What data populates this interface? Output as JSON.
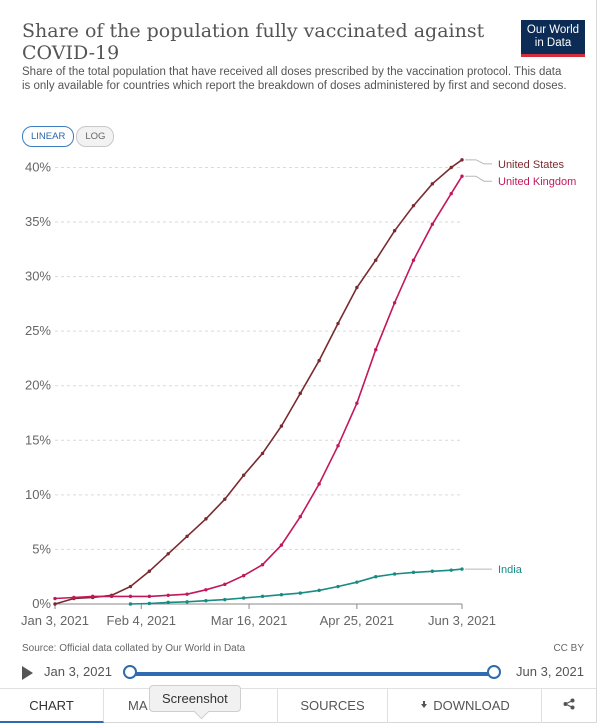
{
  "header": {
    "title": "Share of the population fully vaccinated against COVID-19",
    "subtitle": "Share of the total population that have received all doses prescribed by the vaccination protocol. This data is only available for countries which report the breakdown of doses administered by first and second doses.",
    "logo_line1": "Our World",
    "logo_line2": "in Data",
    "logo_color": "#0c2c55",
    "logo_accent": "#d42e3b"
  },
  "scale_toggle": {
    "linear": "LINEAR",
    "log": "LOG",
    "selected": "LINEAR"
  },
  "chart_data": {
    "type": "line",
    "title": "Share of the population fully vaccinated against COVID-19",
    "xlabel": "",
    "ylabel": "",
    "x_tick_labels": [
      "Jan 3, 2021",
      "Feb 4, 2021",
      "Mar 16, 2021",
      "Apr 25, 2021",
      "Jun 3, 2021"
    ],
    "x_tick_days": [
      0,
      32,
      72,
      112,
      151
    ],
    "y_ticks": [
      0,
      5,
      10,
      15,
      20,
      25,
      30,
      35,
      40
    ],
    "y_tick_labels": [
      "0%",
      "5%",
      "10%",
      "15%",
      "20%",
      "25%",
      "30%",
      "35%",
      "40%"
    ],
    "ylim": [
      0,
      40.5
    ],
    "grid": "horizontal dashed",
    "legend": "line labels at right end",
    "series": [
      {
        "name": "United States",
        "color": "#7a2a2e",
        "x": [
          "Jan 3, 2021",
          "Jan 10, 2021",
          "Jan 17, 2021",
          "Jan 24, 2021",
          "Jan 31, 2021",
          "Feb 7, 2021",
          "Feb 14, 2021",
          "Feb 21, 2021",
          "Feb 28, 2021",
          "Mar 7, 2021",
          "Mar 14, 2021",
          "Mar 21, 2021",
          "Mar 28, 2021",
          "Apr 4, 2021",
          "Apr 11, 2021",
          "Apr 18, 2021",
          "Apr 25, 2021",
          "May 2, 2021",
          "May 9, 2021",
          "May 16, 2021",
          "May 23, 2021",
          "May 30, 2021",
          "Jun 3, 2021"
        ],
        "values": [
          0.0,
          0.5,
          0.6,
          0.8,
          1.6,
          3.0,
          4.6,
          6.2,
          7.8,
          9.6,
          11.8,
          13.8,
          16.3,
          19.3,
          22.3,
          25.7,
          29.0,
          31.5,
          34.2,
          36.5,
          38.5,
          40.0,
          40.7
        ]
      },
      {
        "name": "United Kingdom",
        "color": "#c2185b",
        "x": [
          "Jan 3, 2021",
          "Jan 10, 2021",
          "Jan 17, 2021",
          "Jan 24, 2021",
          "Jan 31, 2021",
          "Feb 7, 2021",
          "Feb 14, 2021",
          "Feb 21, 2021",
          "Feb 28, 2021",
          "Mar 7, 2021",
          "Mar 14, 2021",
          "Mar 21, 2021",
          "Mar 28, 2021",
          "Apr 4, 2021",
          "Apr 11, 2021",
          "Apr 18, 2021",
          "Apr 25, 2021",
          "May 2, 2021",
          "May 9, 2021",
          "May 16, 2021",
          "May 23, 2021",
          "May 30, 2021",
          "Jun 3, 2021"
        ],
        "values": [
          0.5,
          0.6,
          0.7,
          0.7,
          0.7,
          0.7,
          0.8,
          0.9,
          1.3,
          1.8,
          2.6,
          3.6,
          5.4,
          8.0,
          11.0,
          14.5,
          18.4,
          23.3,
          27.6,
          31.5,
          34.8,
          37.6,
          39.2
        ]
      },
      {
        "name": "India",
        "color": "#178c85",
        "x": [
          "Jan 31, 2021",
          "Feb 7, 2021",
          "Feb 14, 2021",
          "Feb 21, 2021",
          "Feb 28, 2021",
          "Mar 7, 2021",
          "Mar 14, 2021",
          "Mar 21, 2021",
          "Mar 28, 2021",
          "Apr 4, 2021",
          "Apr 11, 2021",
          "Apr 18, 2021",
          "Apr 25, 2021",
          "May 2, 2021",
          "May 9, 2021",
          "May 16, 2021",
          "May 23, 2021",
          "May 30, 2021",
          "Jun 3, 2021"
        ],
        "values": [
          0.0,
          0.05,
          0.15,
          0.2,
          0.3,
          0.4,
          0.55,
          0.7,
          0.85,
          1.0,
          1.25,
          1.6,
          2.0,
          2.5,
          2.75,
          2.9,
          3.0,
          3.1,
          3.2
        ]
      }
    ]
  },
  "footer": {
    "source": "Source: Official data collated by Our World in Data",
    "license": "CC BY",
    "start_date": "Jan 3, 2021",
    "end_date": "Jun 3, 2021"
  },
  "tabs": {
    "chart": "CHART",
    "map": "MA",
    "sources": "SOURCES",
    "download": "DOWNLOAD"
  },
  "tooltip": "Screenshot"
}
